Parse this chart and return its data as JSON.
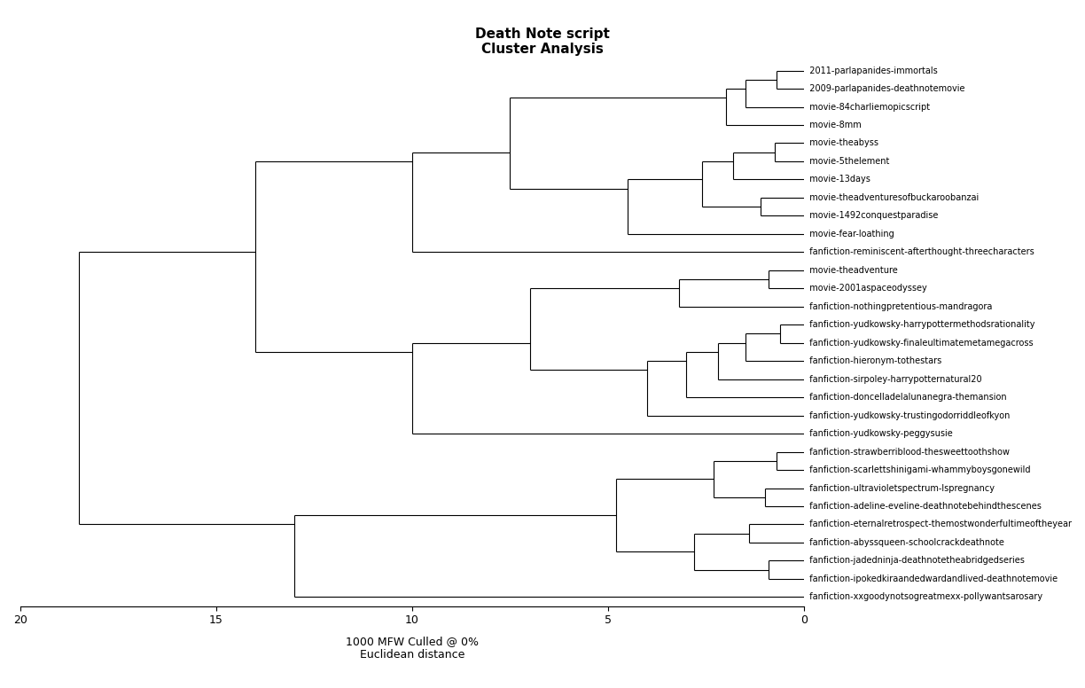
{
  "title": "Death Note script\nCluster Analysis",
  "xlabel_line1": "1000 MFW Culled @ 0%",
  "xlabel_line2": "Euclidean distance",
  "labels_top_to_bottom": [
    "2011-parlapanides-immortals",
    "2009-parlapanides-deathnotemovie",
    "movie-84charliemopicscript",
    "movie-8mm",
    "movie-theabyss",
    "movie-5thelement",
    "movie-13days",
    "movie-theadventuresofbuckaroobanzai",
    "movie-1492conquestparadise",
    "movie-fear-loathing",
    "fanfiction-reminiscent-afterthought-threecharacters",
    "movie-theadventure",
    "movie-2001aspaceodyssey",
    "fanfiction-nothingpretentious-mandragora",
    "fanfiction-yudkowsky-harrypottermethodsrationality",
    "fanfiction-yudkowsky-finaleultimatemetamegacross",
    "fanfiction-hieronym-tothestars",
    "fanfiction-sirpoley-harrypotternatural20",
    "fanfiction-doncelladelalunanegra-themansion",
    "fanfiction-yudkowsky-trustingodorriddleofkyon",
    "fanfiction-yudkowsky-peggysusie",
    "fanfiction-strawberriblood-thesweettoothshow",
    "fanfiction-scarlettshinigami-whammyboysgonewild",
    "fanfiction-ultravioletspectrum-lspregnancy",
    "fanfiction-adeline-eveline-deathnotebehindthescenes",
    "fanfiction-eternalretrospect-themostwonderfultimeoftheyear",
    "fanfiction-abyssqueen-schoolcrackdeathnote",
    "fanfiction-jadedninja-deathnotetheabridgedseries",
    "fanfiction-ipokedkiraandedwardandlived-deathnotemovie",
    "fanfiction-xxgoodynotsogreatmexx-pollywantsarosary"
  ],
  "background_color": "#ffffff",
  "line_color": "#000000",
  "title_fontsize": 11,
  "label_fontsize": 7.0,
  "axis_fontsize": 9,
  "xlim_left": 20,
  "xlim_right": 0,
  "xticks": [
    20,
    15,
    10,
    5,
    0
  ],
  "xticklabels": [
    "20",
    "15",
    "10",
    "5",
    "0"
  ]
}
